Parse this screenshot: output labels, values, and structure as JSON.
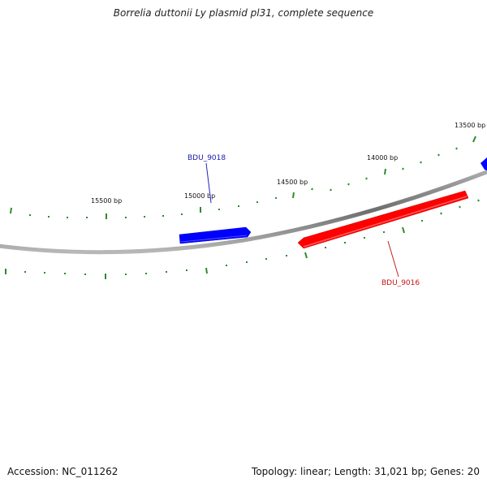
{
  "title": "Borrelia duttonii Ly plasmid pl31, complete sequence",
  "accession": "Accession: NC_011262",
  "summary": "Topology: linear; Length: 31,021 bp; Genes: 20",
  "colors": {
    "backbone": "#808080",
    "tick": "#2e8b2e",
    "forward_gene": "#0000ff",
    "reverse_gene": "#ff0000"
  },
  "ticks": [
    {
      "label": "13500 bp"
    },
    {
      "label": "14000 bp"
    },
    {
      "label": "14500 bp"
    },
    {
      "label": "15000 bp"
    },
    {
      "label": "15500 bp"
    }
  ],
  "genes": [
    {
      "label": "BDU_9018",
      "strand": "forward"
    },
    {
      "label": "BDU_9016",
      "strand": "reverse"
    }
  ]
}
